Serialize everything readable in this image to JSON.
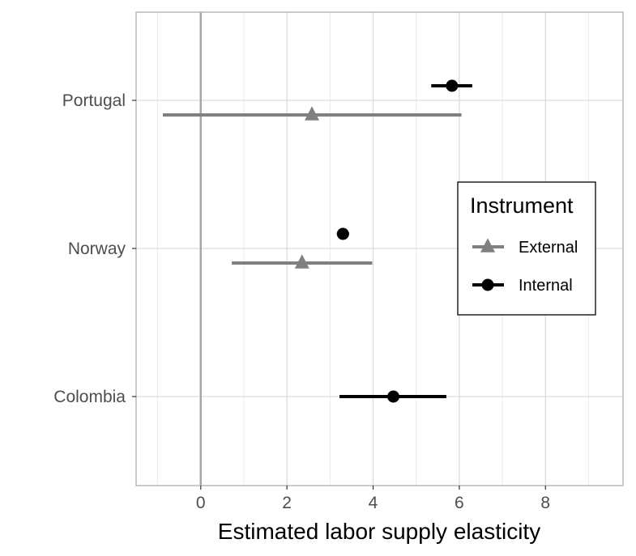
{
  "chart_data": {
    "type": "scatter",
    "subtype": "point-range (coefficient plot)",
    "title": "",
    "xlabel": "Estimated labor supply elasticity",
    "ylabel": "",
    "categories": [
      "Portugal",
      "Norway",
      "Colombia"
    ],
    "xlim": [
      -1.5,
      9.8
    ],
    "x_ticks": [
      0,
      2,
      4,
      6,
      8
    ],
    "reference_line_x": 0,
    "grid": true,
    "legend": {
      "title": "Instrument",
      "placement": "right"
    },
    "series": [
      {
        "name": "External",
        "marker": "triangle",
        "color": "#808080",
        "points": [
          {
            "category": "Portugal",
            "estimate": 2.58,
            "lower": -0.88,
            "upper": 6.05
          },
          {
            "category": "Norway",
            "estimate": 2.35,
            "lower": 0.72,
            "upper": 3.98
          }
        ]
      },
      {
        "name": "Internal",
        "marker": "circle",
        "color": "#000000",
        "points": [
          {
            "category": "Portugal",
            "estimate": 5.83,
            "lower": 5.35,
            "upper": 6.3
          },
          {
            "category": "Norway",
            "estimate": 3.3,
            "lower": 3.16,
            "upper": 3.44
          },
          {
            "category": "Colombia",
            "estimate": 4.47,
            "lower": 3.22,
            "upper": 5.7
          }
        ]
      }
    ]
  }
}
